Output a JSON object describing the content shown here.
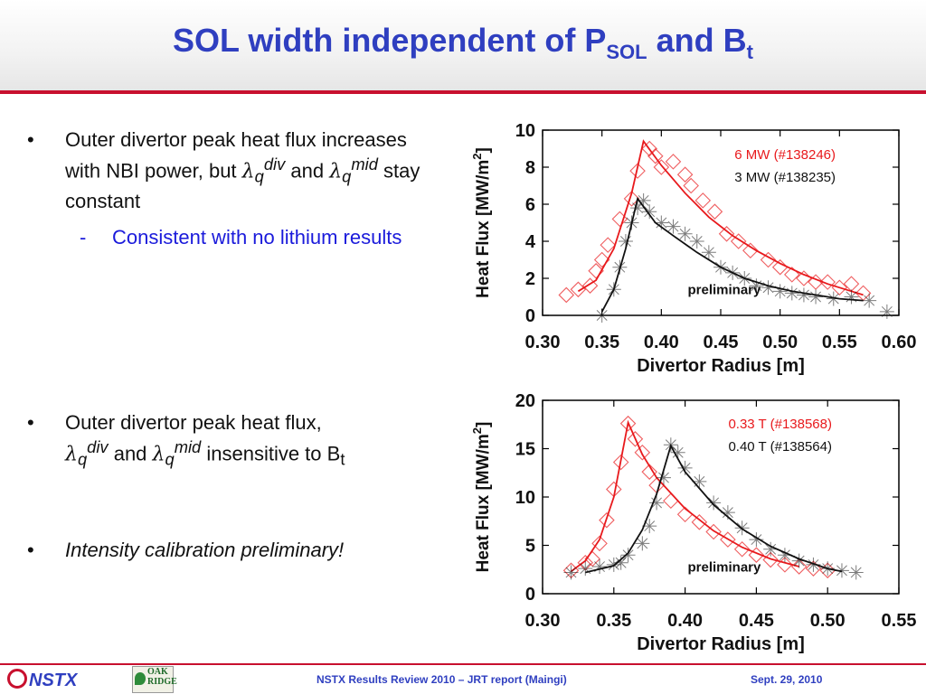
{
  "slide": {
    "title_main": "SOL width independent of P",
    "title_sub1": "SOL",
    "title_mid": " and B",
    "title_sub2": "t"
  },
  "bullets": {
    "b1_text1": "Outer divertor peak heat flux increases with NBI power, but",
    "b1_lambda": "λ",
    "b1_q1": "q",
    "b1_sup1": "div",
    "b1_and": " and ",
    "b1_q2": "q",
    "b1_sup2": "mid",
    "b1_text2": " stay constant",
    "sub1_dash": "-",
    "sub1_text": "Consistent with no lithium results",
    "b2_text1": "Outer divertor peak heat flux,",
    "b2_q1": "q",
    "b2_sup1": "div",
    "b2_and": " and ",
    "b2_q2": "q",
    "b2_sup2": "mid",
    "b2_text2": " insensitive to B",
    "b2_sub": "t",
    "b3_text": "Intensity calibration preliminary!",
    "dot": "•"
  },
  "footer": {
    "left_logo": "NSTX",
    "ornl_line1": "OAK",
    "ornl_line2": "RIDGE",
    "center": "NSTX Results Review 2010 – JRT report (Maingi)",
    "right": "Sept. 29, 2010"
  },
  "colors": {
    "red": "#e8191c",
    "black": "#111111",
    "title_blue": "#2f3fc0"
  },
  "chart_data": [
    {
      "type": "scatter",
      "xlabel": "Divertor Radius [m]",
      "ylabel": "Heat Flux [MW/m",
      "ylabel_sup": "2",
      "ylabel_close": "]",
      "xlim": [
        0.3,
        0.6
      ],
      "ylim": [
        0,
        10
      ],
      "x_ticks": [
        "0.30",
        "0.35",
        "0.40",
        "0.45",
        "0.50",
        "0.55",
        "0.60"
      ],
      "y_ticks": [
        "0",
        "2",
        "4",
        "6",
        "8",
        "10"
      ],
      "annotation": "preliminary",
      "series": [
        {
          "name": "6 MW (#138246)",
          "color": "#e8191c",
          "marker": "diamond",
          "points": [
            [
              0.32,
              1.1
            ],
            [
              0.33,
              1.4
            ],
            [
              0.34,
              1.6
            ],
            [
              0.345,
              2.4
            ],
            [
              0.35,
              3.0
            ],
            [
              0.355,
              3.8
            ],
            [
              0.365,
              5.2
            ],
            [
              0.375,
              6.3
            ],
            [
              0.38,
              7.8
            ],
            [
              0.39,
              9.0
            ],
            [
              0.395,
              8.6
            ],
            [
              0.4,
              8.0
            ],
            [
              0.41,
              8.3
            ],
            [
              0.42,
              7.6
            ],
            [
              0.425,
              7.0
            ],
            [
              0.435,
              6.2
            ],
            [
              0.445,
              5.6
            ],
            [
              0.455,
              4.4
            ],
            [
              0.465,
              4.0
            ],
            [
              0.475,
              3.5
            ],
            [
              0.49,
              3.0
            ],
            [
              0.5,
              2.6
            ],
            [
              0.51,
              2.2
            ],
            [
              0.52,
              2.0
            ],
            [
              0.53,
              1.8
            ],
            [
              0.54,
              1.8
            ],
            [
              0.55,
              1.5
            ],
            [
              0.56,
              1.7
            ],
            [
              0.57,
              1.2
            ]
          ],
          "fit": [
            [
              0.33,
              1.3
            ],
            [
              0.345,
              1.9
            ],
            [
              0.36,
              3.6
            ],
            [
              0.375,
              6.6
            ],
            [
              0.385,
              9.4
            ],
            [
              0.4,
              8.1
            ],
            [
              0.42,
              6.6
            ],
            [
              0.44,
              5.3
            ],
            [
              0.46,
              4.3
            ],
            [
              0.48,
              3.5
            ],
            [
              0.5,
              2.8
            ],
            [
              0.52,
              2.2
            ],
            [
              0.54,
              1.7
            ],
            [
              0.56,
              1.3
            ],
            [
              0.57,
              1.1
            ]
          ]
        },
        {
          "name": "3 MW (#138235)",
          "color": "#111111",
          "marker": "star",
          "points": [
            [
              0.35,
              0.0
            ],
            [
              0.36,
              1.4
            ],
            [
              0.365,
              2.6
            ],
            [
              0.37,
              4.0
            ],
            [
              0.375,
              5.0
            ],
            [
              0.38,
              5.8
            ],
            [
              0.385,
              6.2
            ],
            [
              0.39,
              5.6
            ],
            [
              0.4,
              5.0
            ],
            [
              0.41,
              4.8
            ],
            [
              0.42,
              4.4
            ],
            [
              0.43,
              4.0
            ],
            [
              0.44,
              3.4
            ],
            [
              0.45,
              2.6
            ],
            [
              0.46,
              2.3
            ],
            [
              0.47,
              2.0
            ],
            [
              0.48,
              1.6
            ],
            [
              0.49,
              1.5
            ],
            [
              0.5,
              1.3
            ],
            [
              0.51,
              1.2
            ],
            [
              0.52,
              1.1
            ],
            [
              0.53,
              1.0
            ],
            [
              0.545,
              0.9
            ],
            [
              0.56,
              1.0
            ],
            [
              0.575,
              0.8
            ],
            [
              0.59,
              0.2
            ]
          ],
          "fit": [
            [
              0.35,
              0.2
            ],
            [
              0.36,
              1.4
            ],
            [
              0.37,
              3.6
            ],
            [
              0.38,
              6.3
            ],
            [
              0.395,
              5.0
            ],
            [
              0.41,
              4.3
            ],
            [
              0.43,
              3.4
            ],
            [
              0.45,
              2.6
            ],
            [
              0.47,
              2.0
            ],
            [
              0.49,
              1.6
            ],
            [
              0.51,
              1.3
            ],
            [
              0.53,
              1.1
            ],
            [
              0.55,
              0.9
            ],
            [
              0.57,
              0.8
            ]
          ]
        }
      ]
    },
    {
      "type": "scatter",
      "xlabel": "Divertor Radius [m]",
      "ylabel": "Heat Flux [MW/m",
      "ylabel_sup": "2",
      "ylabel_close": "]",
      "xlim": [
        0.3,
        0.55
      ],
      "ylim": [
        0,
        20
      ],
      "x_ticks": [
        "0.30",
        "0.35",
        "0.40",
        "0.45",
        "0.50",
        "0.55"
      ],
      "y_ticks": [
        "0",
        "5",
        "10",
        "15",
        "20"
      ],
      "annotation": "preliminary",
      "series": [
        {
          "name": "0.33 T (#138568)",
          "color": "#e8191c",
          "marker": "diamond",
          "points": [
            [
              0.32,
              2.4
            ],
            [
              0.33,
              3.2
            ],
            [
              0.335,
              3.6
            ],
            [
              0.34,
              5.2
            ],
            [
              0.345,
              7.6
            ],
            [
              0.35,
              10.8
            ],
            [
              0.355,
              13.6
            ],
            [
              0.36,
              17.6
            ],
            [
              0.365,
              16.0
            ],
            [
              0.37,
              14.6
            ],
            [
              0.375,
              12.6
            ],
            [
              0.38,
              11.2
            ],
            [
              0.39,
              9.6
            ],
            [
              0.4,
              8.2
            ],
            [
              0.41,
              7.4
            ],
            [
              0.42,
              6.4
            ],
            [
              0.43,
              5.6
            ],
            [
              0.44,
              4.6
            ],
            [
              0.45,
              4.0
            ],
            [
              0.46,
              3.5
            ],
            [
              0.47,
              3.0
            ],
            [
              0.48,
              2.8
            ],
            [
              0.49,
              2.6
            ],
            [
              0.5,
              2.4
            ]
          ],
          "fit": [
            [
              0.32,
              2.3
            ],
            [
              0.33,
              3.4
            ],
            [
              0.34,
              5.6
            ],
            [
              0.35,
              10.0
            ],
            [
              0.36,
              17.7
            ],
            [
              0.37,
              14.4
            ],
            [
              0.38,
              12.0
            ],
            [
              0.4,
              8.8
            ],
            [
              0.42,
              6.5
            ],
            [
              0.44,
              4.8
            ],
            [
              0.46,
              3.6
            ],
            [
              0.48,
              2.8
            ]
          ]
        },
        {
          "name": "0.40 T (#138564)",
          "color": "#111111",
          "marker": "star",
          "points": [
            [
              0.32,
              2.2
            ],
            [
              0.33,
              2.6
            ],
            [
              0.34,
              2.8
            ],
            [
              0.35,
              3.0
            ],
            [
              0.355,
              3.2
            ],
            [
              0.36,
              4.0
            ],
            [
              0.37,
              5.2
            ],
            [
              0.375,
              7.0
            ],
            [
              0.38,
              9.4
            ],
            [
              0.385,
              12.0
            ],
            [
              0.39,
              15.4
            ],
            [
              0.395,
              14.6
            ],
            [
              0.4,
              13.0
            ],
            [
              0.41,
              11.6
            ],
            [
              0.42,
              9.4
            ],
            [
              0.43,
              8.4
            ],
            [
              0.44,
              6.8
            ],
            [
              0.45,
              5.6
            ],
            [
              0.46,
              4.6
            ],
            [
              0.47,
              4.0
            ],
            [
              0.48,
              3.4
            ],
            [
              0.49,
              3.0
            ],
            [
              0.5,
              2.6
            ],
            [
              0.51,
              2.4
            ],
            [
              0.52,
              2.2
            ]
          ],
          "fit": [
            [
              0.33,
              2.2
            ],
            [
              0.35,
              2.9
            ],
            [
              0.36,
              4.2
            ],
            [
              0.37,
              6.6
            ],
            [
              0.38,
              10.3
            ],
            [
              0.39,
              15.3
            ],
            [
              0.4,
              12.6
            ],
            [
              0.42,
              9.2
            ],
            [
              0.44,
              6.7
            ],
            [
              0.46,
              4.9
            ],
            [
              0.48,
              3.6
            ],
            [
              0.5,
              2.6
            ],
            [
              0.51,
              2.3
            ]
          ]
        }
      ]
    }
  ]
}
